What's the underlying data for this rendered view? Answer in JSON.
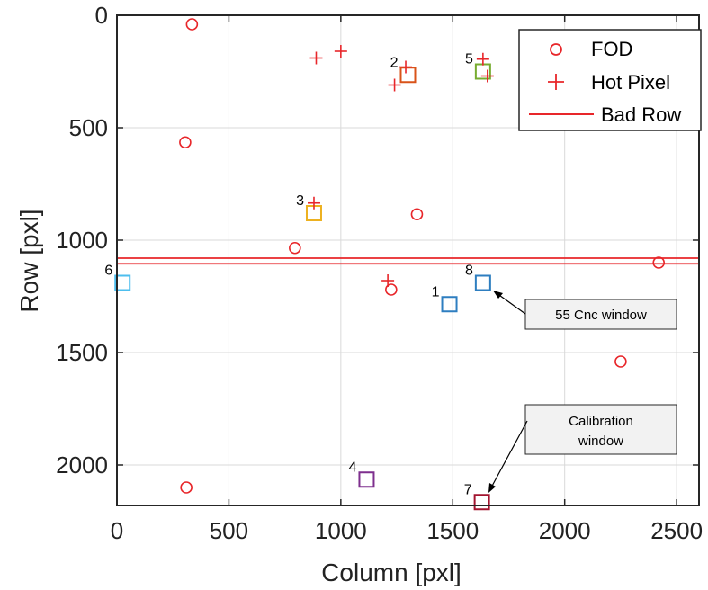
{
  "chart_data": {
    "type": "scatter",
    "xlabel": "Column [pxl]",
    "ylabel": "Row [pxl]",
    "xlim": [
      0,
      2600
    ],
    "ylim": [
      0,
      2180
    ],
    "y_axis_reversed": true,
    "grid": true,
    "legend_position": "top-right",
    "xticks": [
      0,
      500,
      1000,
      1500,
      2000,
      2500
    ],
    "yticks": [
      0,
      500,
      1000,
      1500,
      2000
    ],
    "colors": {
      "fod": "#e8262a",
      "hot_pixel": "#e8262a",
      "bad_row": "#e8262a",
      "grid": "#d9d9d9",
      "axis": "#262626"
    },
    "series": [
      {
        "name": "FOD",
        "marker": "circle",
        "points": [
          [
            335,
            40
          ],
          [
            305,
            565
          ],
          [
            795,
            1035
          ],
          [
            1340,
            885
          ],
          [
            1225,
            1220
          ],
          [
            2420,
            1100
          ],
          [
            2250,
            1540
          ],
          [
            310,
            2100
          ]
        ]
      },
      {
        "name": "Hot Pixel",
        "marker": "plus",
        "points": [
          [
            890,
            190
          ],
          [
            1000,
            160
          ],
          [
            1290,
            230
          ],
          [
            1240,
            310
          ],
          [
            880,
            835
          ],
          [
            1210,
            1180
          ],
          [
            1635,
            195
          ],
          [
            1655,
            270
          ]
        ]
      },
      {
        "name": "Bad Row",
        "marker": "hline",
        "rows": [
          1080,
          1105
        ]
      }
    ],
    "windows": [
      {
        "label": "1",
        "x": 1485,
        "y": 1285,
        "color": "#2e7ec0"
      },
      {
        "label": "2",
        "x": 1300,
        "y": 265,
        "color": "#d95319"
      },
      {
        "label": "3",
        "x": 880,
        "y": 880,
        "color": "#edb120"
      },
      {
        "label": "4",
        "x": 1115,
        "y": 2065,
        "color": "#7e2f8e"
      },
      {
        "label": "5",
        "x": 1635,
        "y": 250,
        "color": "#77ac30"
      },
      {
        "label": "6",
        "x": 25,
        "y": 1190,
        "color": "#4dbeee"
      },
      {
        "label": "7",
        "x": 1630,
        "y": 2165,
        "color": "#a2142f"
      },
      {
        "label": "8",
        "x": 1635,
        "y": 1190,
        "color": "#2e7ec0"
      }
    ],
    "annotations": [
      {
        "lines": [
          "55 Cnc window"
        ],
        "points_to": "8"
      },
      {
        "lines": [
          "Calibration",
          "window"
        ],
        "points_to": "7"
      }
    ]
  }
}
